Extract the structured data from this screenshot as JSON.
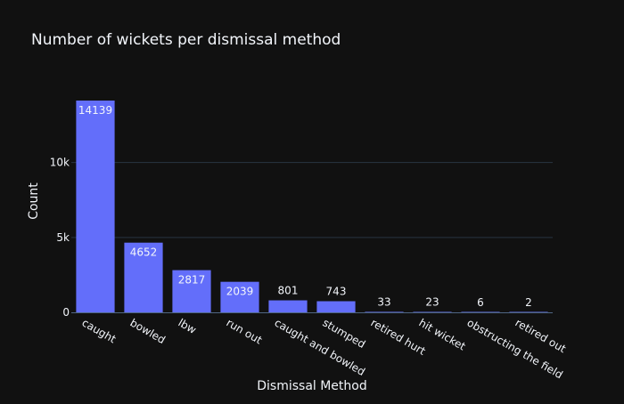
{
  "chart_data": {
    "type": "bar",
    "title": "Number of wickets per dismissal method",
    "xlabel": "Dismissal Method",
    "ylabel": "Count",
    "categories": [
      "caught",
      "bowled",
      "lbw",
      "run out",
      "caught and bowled",
      "stumped",
      "retired hurt",
      "hit wicket",
      "obstructing the field",
      "retired out"
    ],
    "values": [
      14139,
      4652,
      2817,
      2039,
      801,
      743,
      33,
      23,
      6,
      2
    ],
    "ylim": [
      0,
      14139
    ],
    "yticks": [
      {
        "value": 0,
        "label": "0"
      },
      {
        "value": 5000,
        "label": "5k"
      },
      {
        "value": 10000,
        "label": "10k"
      }
    ],
    "grid": true,
    "legend": "none",
    "colors": {
      "background": "#111111",
      "bar": "#636efa",
      "grid": "#283442",
      "text": "#f2f5fa"
    }
  }
}
